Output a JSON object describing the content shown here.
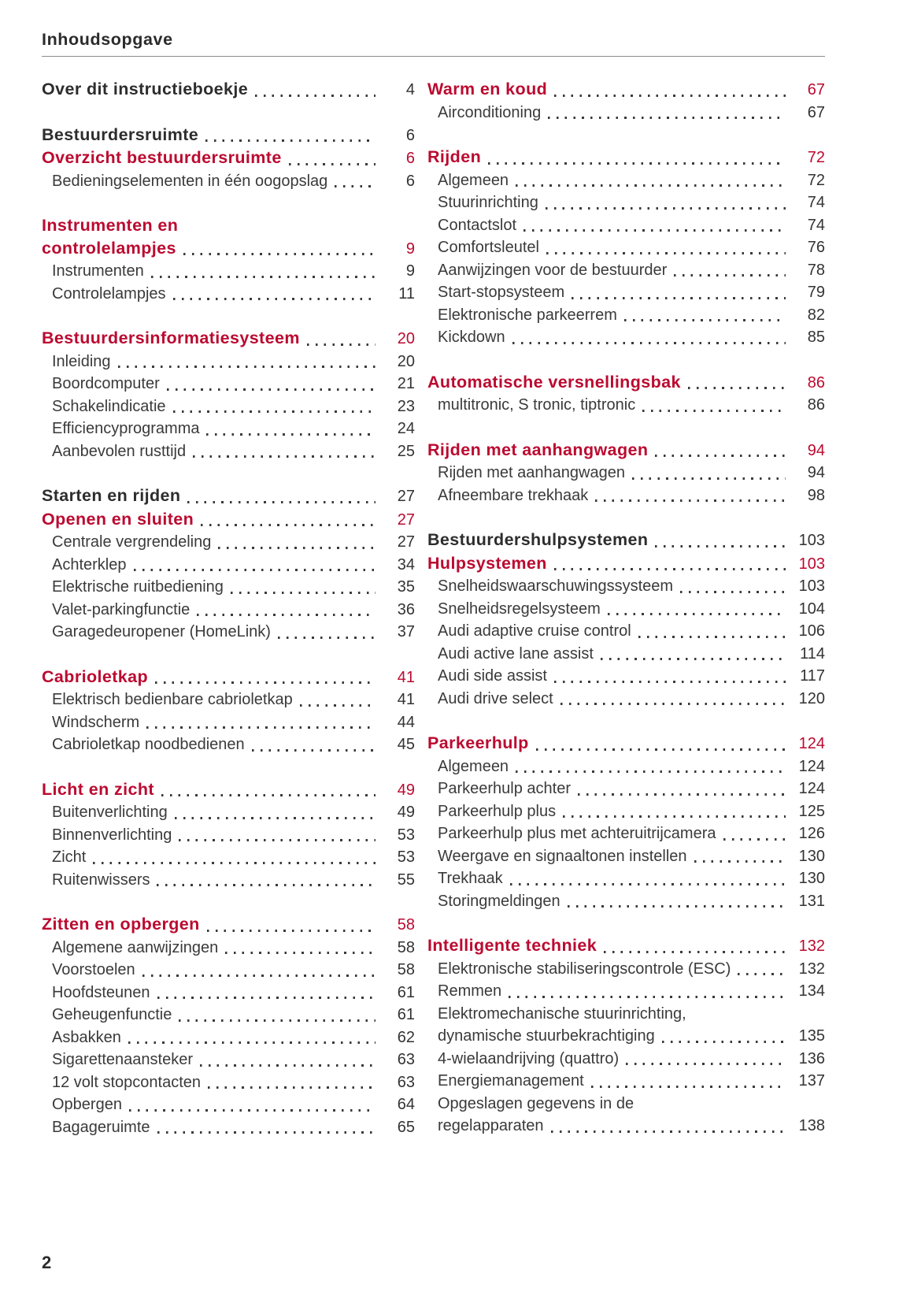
{
  "header": {
    "title": "Inhoudsopgave"
  },
  "footer": {
    "page_number": "2"
  },
  "colors": {
    "accent_red": "#bb0a30",
    "text_dark": "#2f2f2f",
    "rule_gray": "#8c8c8c"
  },
  "toc": {
    "left": [
      {
        "entries": [
          {
            "label": "Over dit instructieboekje",
            "page": "4",
            "style": "part"
          }
        ]
      },
      {
        "entries": [
          {
            "label": "Bestuurdersruimte",
            "page": "6",
            "style": "part"
          },
          {
            "label": "Overzicht bestuurdersruimte",
            "page": "6",
            "style": "chapter"
          },
          {
            "label": "Bedieningselementen in één oogopslag",
            "page": "6",
            "style": "sub"
          }
        ]
      },
      {
        "entries": [
          {
            "label": "Instrumenten en",
            "page": "",
            "style": "chapter"
          },
          {
            "label": "controlelampjes",
            "page": "9",
            "style": "chapter"
          },
          {
            "label": "Instrumenten",
            "page": "9",
            "style": "sub"
          },
          {
            "label": "Controlelampjes",
            "page": "11",
            "style": "sub"
          }
        ]
      },
      {
        "entries": [
          {
            "label": "Bestuurdersinformatiesysteem",
            "page": "20",
            "style": "chapter"
          },
          {
            "label": "Inleiding",
            "page": "20",
            "style": "sub"
          },
          {
            "label": "Boordcomputer",
            "page": "21",
            "style": "sub"
          },
          {
            "label": "Schakelindicatie",
            "page": "23",
            "style": "sub"
          },
          {
            "label": "Efficiencyprogramma",
            "page": "24",
            "style": "sub"
          },
          {
            "label": "Aanbevolen rusttijd",
            "page": "25",
            "style": "sub"
          }
        ]
      },
      {
        "entries": [
          {
            "label": "Starten en rijden",
            "page": "27",
            "style": "part"
          },
          {
            "label": "Openen en sluiten",
            "page": "27",
            "style": "chapter"
          },
          {
            "label": "Centrale vergrendeling",
            "page": "27",
            "style": "sub"
          },
          {
            "label": "Achterklep",
            "page": "34",
            "style": "sub"
          },
          {
            "label": "Elektrische ruitbediening",
            "page": "35",
            "style": "sub"
          },
          {
            "label": "Valet-parkingfunctie",
            "page": "36",
            "style": "sub"
          },
          {
            "label": "Garagedeuropener (HomeLink)",
            "page": "37",
            "style": "sub"
          }
        ]
      },
      {
        "entries": [
          {
            "label": "Cabrioletkap",
            "page": "41",
            "style": "chapter"
          },
          {
            "label": "Elektrisch bedienbare cabrioletkap",
            "page": "41",
            "style": "sub"
          },
          {
            "label": "Windscherm",
            "page": "44",
            "style": "sub"
          },
          {
            "label": "Cabrioletkap noodbedienen",
            "page": "45",
            "style": "sub"
          }
        ]
      },
      {
        "entries": [
          {
            "label": "Licht en zicht",
            "page": "49",
            "style": "chapter"
          },
          {
            "label": "Buitenverlichting",
            "page": "49",
            "style": "sub"
          },
          {
            "label": "Binnenverlichting",
            "page": "53",
            "style": "sub"
          },
          {
            "label": "Zicht",
            "page": "53",
            "style": "sub"
          },
          {
            "label": "Ruitenwissers",
            "page": "55",
            "style": "sub"
          }
        ]
      },
      {
        "entries": [
          {
            "label": "Zitten en opbergen",
            "page": "58",
            "style": "chapter"
          },
          {
            "label": "Algemene aanwijzingen",
            "page": "58",
            "style": "sub"
          },
          {
            "label": "Voorstoelen",
            "page": "58",
            "style": "sub"
          },
          {
            "label": "Hoofdsteunen",
            "page": "61",
            "style": "sub"
          },
          {
            "label": "Geheugenfunctie",
            "page": "61",
            "style": "sub"
          },
          {
            "label": "Asbakken",
            "page": "62",
            "style": "sub"
          },
          {
            "label": "Sigarettenaansteker",
            "page": "63",
            "style": "sub"
          },
          {
            "label": "12 volt stopcontacten",
            "page": "63",
            "style": "sub"
          },
          {
            "label": "Opbergen",
            "page": "64",
            "style": "sub"
          },
          {
            "label": "Bagageruimte",
            "page": "65",
            "style": "sub"
          }
        ]
      }
    ],
    "right": [
      {
        "entries": [
          {
            "label": "Warm en koud",
            "page": "67",
            "style": "chapter"
          },
          {
            "label": "Airconditioning",
            "page": "67",
            "style": "sub"
          }
        ]
      },
      {
        "entries": [
          {
            "label": "Rijden",
            "page": "72",
            "style": "chapter"
          },
          {
            "label": "Algemeen",
            "page": "72",
            "style": "sub"
          },
          {
            "label": "Stuurinrichting",
            "page": "74",
            "style": "sub"
          },
          {
            "label": "Contactslot",
            "page": "74",
            "style": "sub"
          },
          {
            "label": "Comfortsleutel",
            "page": "76",
            "style": "sub"
          },
          {
            "label": "Aanwijzingen voor de bestuurder",
            "page": "78",
            "style": "sub"
          },
          {
            "label": "Start-stopsysteem",
            "page": "79",
            "style": "sub"
          },
          {
            "label": "Elektronische parkeerrem",
            "page": "82",
            "style": "sub"
          },
          {
            "label": "Kickdown",
            "page": "85",
            "style": "sub"
          }
        ]
      },
      {
        "entries": [
          {
            "label": "Automatische versnellingsbak",
            "page": "86",
            "style": "chapter"
          },
          {
            "label": "multitronic, S tronic, tiptronic",
            "page": "86",
            "style": "sub"
          }
        ]
      },
      {
        "entries": [
          {
            "label": "Rijden met aanhangwagen",
            "page": "94",
            "style": "chapter"
          },
          {
            "label": "Rijden met aanhangwagen",
            "page": "94",
            "style": "sub"
          },
          {
            "label": "Afneembare trekhaak",
            "page": "98",
            "style": "sub"
          }
        ]
      },
      {
        "entries": [
          {
            "label": "Bestuurdershulpsystemen",
            "page": "103",
            "style": "part"
          },
          {
            "label": "Hulpsystemen",
            "page": "103",
            "style": "chapter"
          },
          {
            "label": "Snelheidswaarschuwingssysteem",
            "page": "103",
            "style": "sub"
          },
          {
            "label": "Snelheidsregelsysteem",
            "page": "104",
            "style": "sub"
          },
          {
            "label": "Audi adaptive cruise control",
            "page": "106",
            "style": "sub"
          },
          {
            "label": "Audi active lane assist",
            "page": "114",
            "style": "sub"
          },
          {
            "label": "Audi side assist",
            "page": "117",
            "style": "sub"
          },
          {
            "label": "Audi drive select",
            "page": "120",
            "style": "sub"
          }
        ]
      },
      {
        "entries": [
          {
            "label": "Parkeerhulp",
            "page": "124",
            "style": "chapter"
          },
          {
            "label": "Algemeen",
            "page": "124",
            "style": "sub"
          },
          {
            "label": "Parkeerhulp achter",
            "page": "124",
            "style": "sub"
          },
          {
            "label": "Parkeerhulp plus",
            "page": "125",
            "style": "sub"
          },
          {
            "label": "Parkeerhulp plus met achteruitrijcamera",
            "page": "126",
            "style": "sub"
          },
          {
            "label": "Weergave en signaaltonen instellen",
            "page": "130",
            "style": "sub"
          },
          {
            "label": "Trekhaak",
            "page": "130",
            "style": "sub"
          },
          {
            "label": "Storingmeldingen",
            "page": "131",
            "style": "sub"
          }
        ]
      },
      {
        "entries": [
          {
            "label": "Intelligente techniek",
            "page": "132",
            "style": "chapter"
          },
          {
            "label": "Elektronische stabiliseringscontrole (ESC)",
            "page": "132",
            "style": "sub"
          },
          {
            "label": "Remmen",
            "page": "134",
            "style": "sub"
          },
          {
            "label": "Elektromechanische stuurinrichting,",
            "page": "",
            "style": "sub"
          },
          {
            "label": "dynamische stuurbekrachtiging",
            "page": "135",
            "style": "sub"
          },
          {
            "label": "4-wielaandrijving (quattro)",
            "page": "136",
            "style": "sub"
          },
          {
            "label": "Energiemanagement",
            "page": "137",
            "style": "sub"
          },
          {
            "label": "Opgeslagen gegevens in de",
            "page": "",
            "style": "sub"
          },
          {
            "label": "regelapparaten",
            "page": "138",
            "style": "sub"
          }
        ]
      }
    ]
  }
}
